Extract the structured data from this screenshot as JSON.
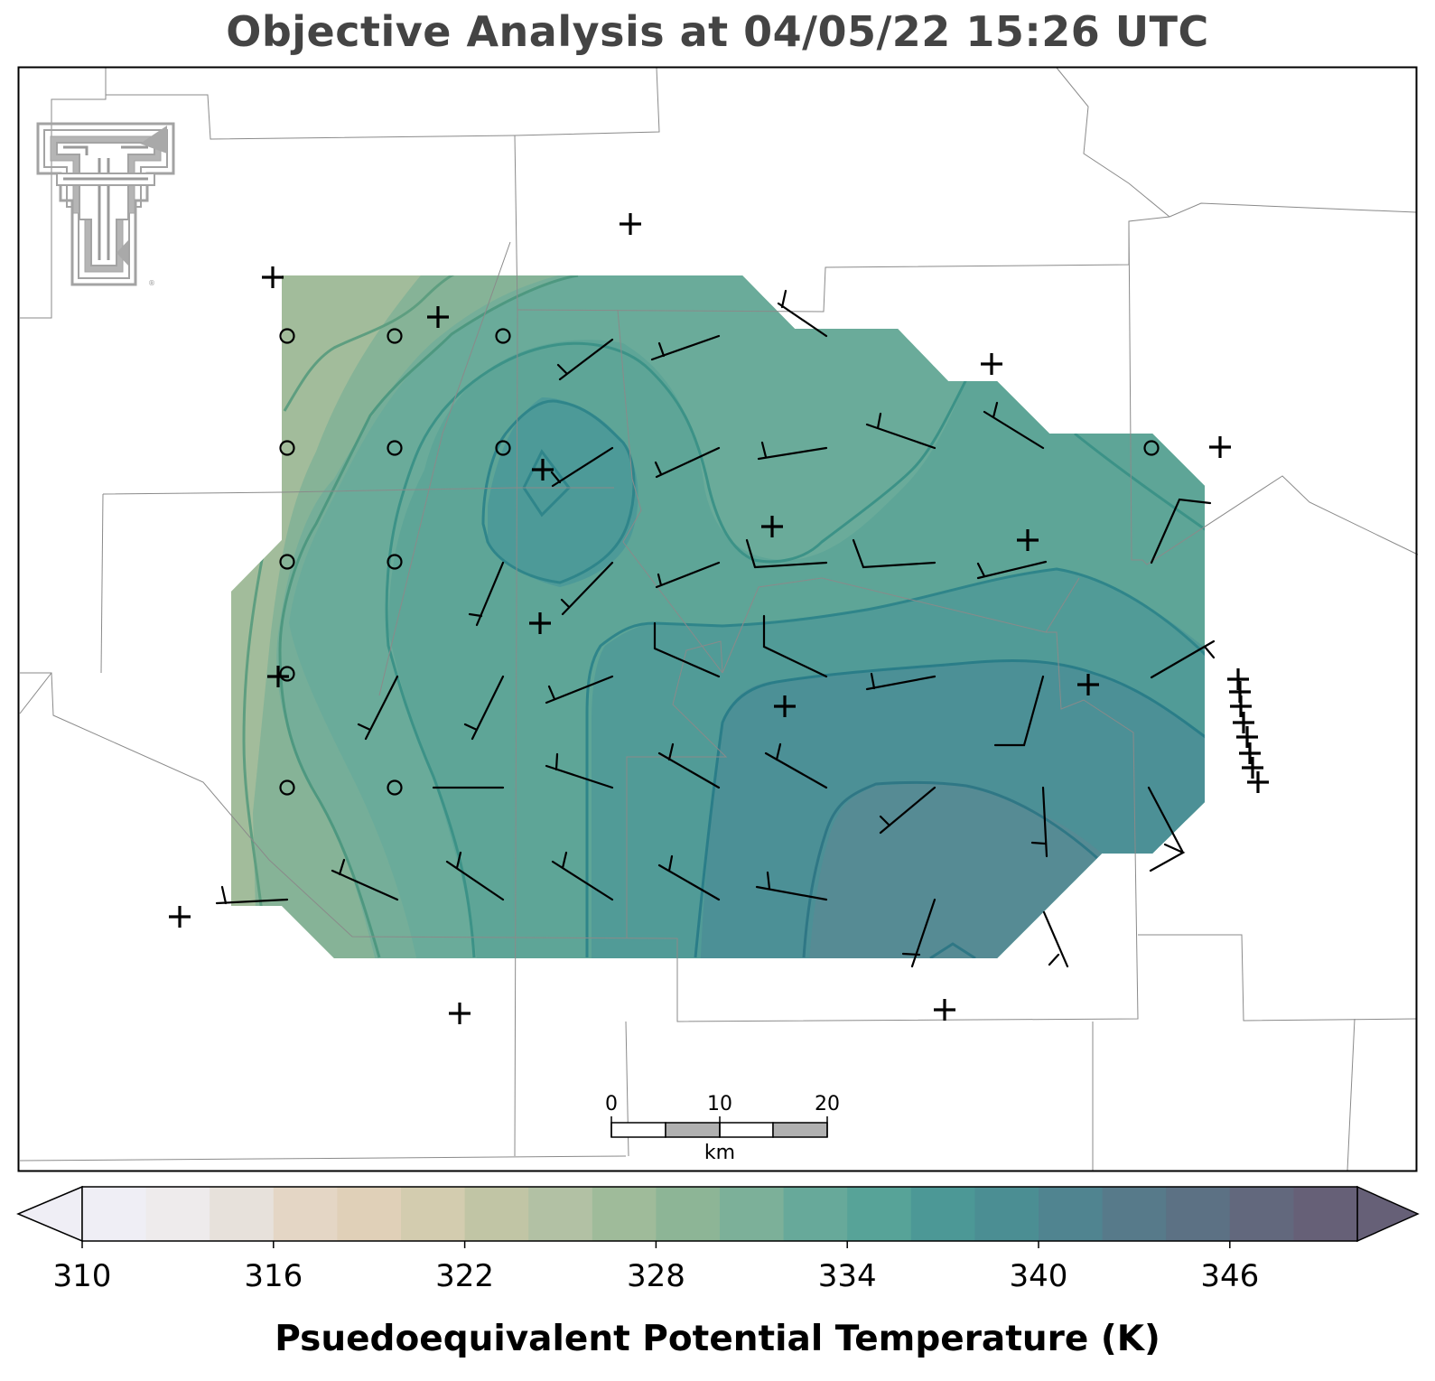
{
  "title": "Objective Analysis at 04/05/22 15:26 UTC",
  "colorbar": {
    "label": "Psuedoequivalent Potential Temperature (K)",
    "ticks": [
      "310",
      "316",
      "322",
      "328",
      "334",
      "340",
      "346"
    ],
    "min": 310,
    "max": 350,
    "step": 2,
    "colors": [
      "#efeef5",
      "#eeebec",
      "#e7e1db",
      "#e4d6c5",
      "#e0d0b8",
      "#d3ccaf",
      "#c1c5a5",
      "#b2c1a4",
      "#9fbb9a",
      "#8db596",
      "#7cb099",
      "#67a99a",
      "#57a398",
      "#4c9896",
      "#4b8e93",
      "#508490",
      "#577a8a",
      "#5c7184",
      "#62687d",
      "#666077"
    ]
  },
  "scale_bar": {
    "ticks": [
      "0",
      "10",
      "20"
    ],
    "unit": "km"
  },
  "logo": {
    "name": "texas-tech-double-t-logo",
    "mark": "®"
  }
}
